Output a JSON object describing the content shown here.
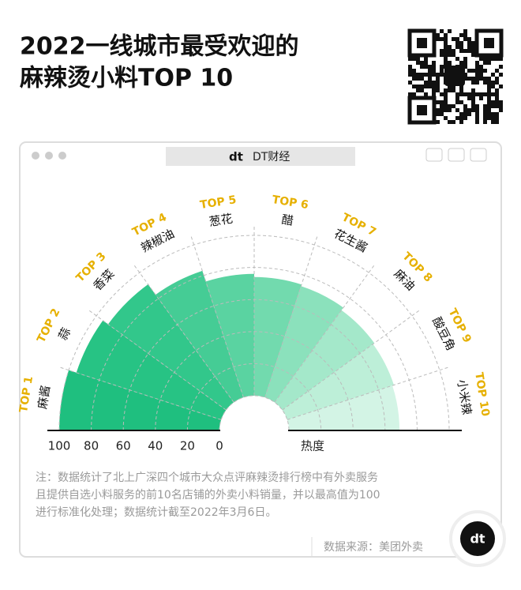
{
  "chart_data": {
    "type": "polar_bar",
    "title": [
      "2022一线城市最受欢迎的",
      "麻辣烫小料TOP 10"
    ],
    "window_title": "DT财经",
    "ranks": [
      "TOP 1",
      "TOP 2",
      "TOP 3",
      "TOP 4",
      "TOP 5",
      "TOP 6",
      "TOP 7",
      "TOP 8",
      "TOP 9",
      "TOP 10"
    ],
    "categories": [
      "麻酱",
      "蒜",
      "香菜",
      "辣椒油",
      "葱花",
      "醋",
      "花生酱",
      "麻油",
      "酸豆角",
      "小米辣"
    ],
    "values": [
      100,
      95,
      91,
      83,
      76,
      74,
      73,
      71,
      70,
      69
    ],
    "colors": [
      "#1fbf7f",
      "#27c384",
      "#32c78b",
      "#45cc95",
      "#5ad3a1",
      "#72daae",
      "#8be1bc",
      "#a4e8ca",
      "#bdefd8",
      "#d3f4e5"
    ],
    "rlim": [
      0,
      100
    ],
    "rticks": [
      100,
      80,
      60,
      40,
      20,
      0
    ],
    "axis_label": "热度",
    "grid": true,
    "notes": [
      "注：数据统计了北上广深四个城市大众点评麻辣烫排行榜中有外卖服务",
      "且提供自选小料服务的前10名店铺的外卖小料销量，并以最高值为100",
      "进行标准化处理；数据统计截至2022年3月6日。"
    ],
    "source": "数据来源：美团外卖"
  }
}
